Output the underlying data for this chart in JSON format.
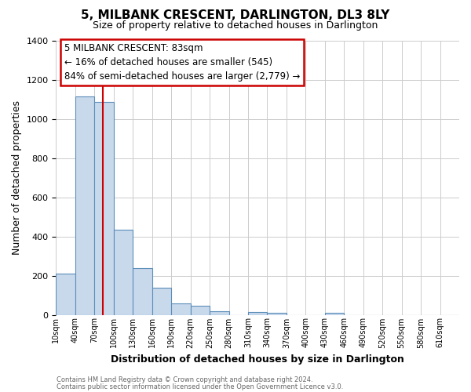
{
  "title": "5, MILBANK CRESCENT, DARLINGTON, DL3 8LY",
  "subtitle": "Size of property relative to detached houses in Darlington",
  "xlabel": "Distribution of detached houses by size in Darlington",
  "ylabel": "Number of detached properties",
  "footer_lines": [
    "Contains HM Land Registry data © Crown copyright and database right 2024.",
    "Contains public sector information licensed under the Open Government Licence v3.0."
  ],
  "bin_labels": [
    "10sqm",
    "40sqm",
    "70sqm",
    "100sqm",
    "130sqm",
    "160sqm",
    "190sqm",
    "220sqm",
    "250sqm",
    "280sqm",
    "310sqm",
    "340sqm",
    "370sqm",
    "400sqm",
    "430sqm",
    "460sqm",
    "490sqm",
    "520sqm",
    "550sqm",
    "580sqm",
    "610sqm"
  ],
  "bar_heights": [
    210,
    1115,
    1085,
    435,
    240,
    140,
    60,
    47,
    20,
    0,
    15,
    10,
    0,
    0,
    10,
    0,
    0,
    0,
    0,
    0,
    0
  ],
  "bar_color": "#c9d9ec",
  "bar_edge_color": "#5b8db8",
  "ylim": [
    0,
    1400
  ],
  "yticks": [
    0,
    200,
    400,
    600,
    800,
    1000,
    1200,
    1400
  ],
  "property_sqm": 83,
  "annotation_title": "5 MILBANK CRESCENT: 83sqm",
  "annotation_line1": "← 16% of detached houses are smaller (545)",
  "annotation_line2": "84% of semi-detached houses are larger (2,779) →",
  "vline_color": "#cc0000",
  "annotation_box_color": "#ffffff",
  "annotation_box_edge_color": "#cc0000",
  "grid_color": "#cccccc",
  "background_color": "#ffffff"
}
